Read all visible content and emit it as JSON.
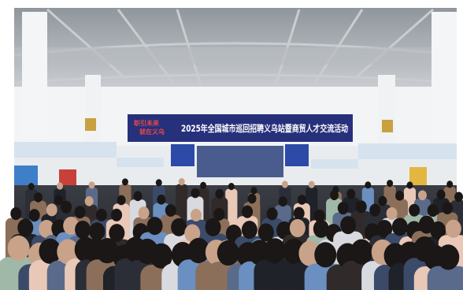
{
  "banner": {
    "slogan": [
      "职引未来",
      "就在义乌"
    ],
    "title": "2025年全国城市巡回招聘义乌站暨商贸人才交流活动"
  }
}
